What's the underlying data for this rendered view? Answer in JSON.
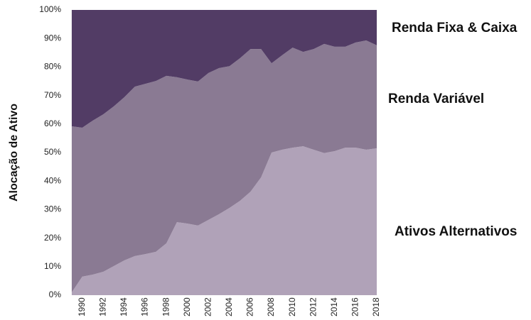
{
  "chart_data": {
    "type": "stacked-area",
    "y_label": "Alocação de Ativo",
    "x": [
      1989,
      1990,
      1991,
      1992,
      1993,
      1994,
      1995,
      1996,
      1997,
      1998,
      1999,
      2000,
      2001,
      2002,
      2003,
      2004,
      2005,
      2006,
      2007,
      2008,
      2009,
      2010,
      2011,
      2012,
      2013,
      2014,
      2015,
      2016,
      2017,
      2018
    ],
    "series": [
      {
        "name": "Ativos Alternativos",
        "color": "#b0a2b8",
        "values": [
          1,
          6.5,
          7.2,
          8.2,
          10.2,
          12.2,
          13.7,
          14.4,
          15.2,
          18.2,
          25.6,
          25.1,
          24.4,
          26.4,
          28.4,
          30.6,
          33.1,
          36.3,
          41.3,
          50.0,
          51.0,
          51.7,
          52.2,
          51.0,
          49.8,
          50.5,
          51.7,
          51.7,
          51.0,
          51.5
        ]
      },
      {
        "name": "Renda Variável",
        "color": "#8a7a93",
        "values": [
          58.2,
          52.2,
          54.0,
          55.2,
          56.0,
          57.2,
          59.4,
          59.7,
          59.9,
          58.7,
          50.8,
          50.5,
          50.5,
          51.5,
          51.2,
          49.7,
          50.0,
          50.0,
          45.0,
          31.3,
          33.1,
          35.1,
          33.1,
          35.3,
          38.3,
          36.6,
          35.4,
          36.9,
          38.3,
          36.1
        ]
      },
      {
        "name": "Renda Fixa & Caixa",
        "color": "#523c65",
        "values": [
          40.8,
          41.3,
          38.8,
          36.6,
          33.8,
          30.6,
          26.9,
          25.9,
          24.9,
          23.1,
          23.6,
          24.4,
          25.1,
          22.1,
          20.4,
          19.7,
          16.9,
          13.7,
          13.7,
          18.7,
          15.9,
          13.2,
          14.7,
          13.7,
          11.9,
          12.9,
          12.9,
          11.4,
          10.7,
          12.4
        ]
      }
    ],
    "xlim": [
      1988.6,
      2018.2
    ],
    "xticks": [
      1990,
      1992,
      1994,
      1996,
      1998,
      2000,
      2002,
      2004,
      2006,
      2008,
      2010,
      2012,
      2014,
      2016,
      2018
    ],
    "ylim": [
      0,
      100
    ],
    "yticks": [
      {
        "value": 0,
        "label": "0%"
      },
      {
        "value": 10,
        "label": "10%"
      },
      {
        "value": 20,
        "label": "20%"
      },
      {
        "value": 30,
        "label": "30%"
      },
      {
        "value": 40,
        "label": "40%"
      },
      {
        "value": 50,
        "label": "50%"
      },
      {
        "value": 60,
        "label": "60%"
      },
      {
        "value": 70,
        "label": "70%"
      },
      {
        "value": 80,
        "label": "80%"
      },
      {
        "value": 90,
        "label": "90%"
      },
      {
        "value": 100,
        "label": "100%"
      }
    ]
  }
}
